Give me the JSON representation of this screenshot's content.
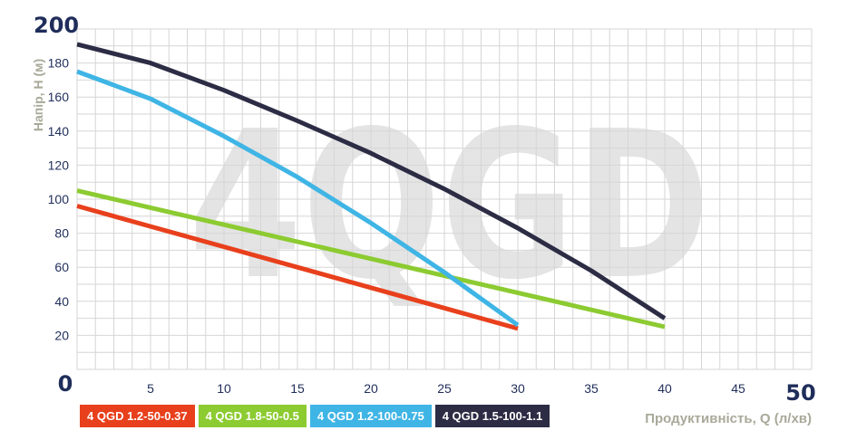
{
  "chart_data": {
    "type": "line",
    "watermark": "4QGD",
    "xlabel": "Продуктивність, Q (л/хв)",
    "ylabel": "Напір, Н (м)",
    "xlim": [
      0,
      50
    ],
    "ylim": [
      0,
      200
    ],
    "x_ticks": [
      "0",
      "5",
      "10",
      "15",
      "20",
      "25",
      "30",
      "35",
      "40",
      "45",
      "50"
    ],
    "y_ticks": [
      "0",
      "20",
      "40",
      "60",
      "80",
      "100",
      "120",
      "140",
      "160",
      "180",
      "200"
    ],
    "grid": true,
    "legend_position": "bottom-left",
    "series": [
      {
        "name": "4 QGD 1.2-50-0.37",
        "color": "#e8401c",
        "x": [
          0,
          5,
          10,
          15,
          20,
          25,
          30
        ],
        "y": [
          96,
          84,
          72,
          60,
          48,
          36,
          24
        ]
      },
      {
        "name": "4 QGD 1.8-50-0.5",
        "color": "#8ccb31",
        "x": [
          0,
          5,
          10,
          15,
          20,
          25,
          30,
          35,
          40
        ],
        "y": [
          105,
          95,
          85,
          75,
          65,
          55,
          45,
          35,
          25
        ]
      },
      {
        "name": "4 QGD 1.2-100-0.75",
        "color": "#3fb5e5",
        "x": [
          0,
          5,
          10,
          15,
          20,
          25,
          30
        ],
        "y": [
          175,
          159,
          137,
          113,
          86,
          57,
          26
        ]
      },
      {
        "name": "4 QGD 1.5-100-1.1",
        "color": "#2c2c45",
        "x": [
          0,
          5,
          10,
          15,
          20,
          25,
          30,
          35,
          40
        ],
        "y": [
          191,
          180,
          164,
          146,
          127,
          106,
          83,
          58,
          30
        ]
      }
    ]
  }
}
